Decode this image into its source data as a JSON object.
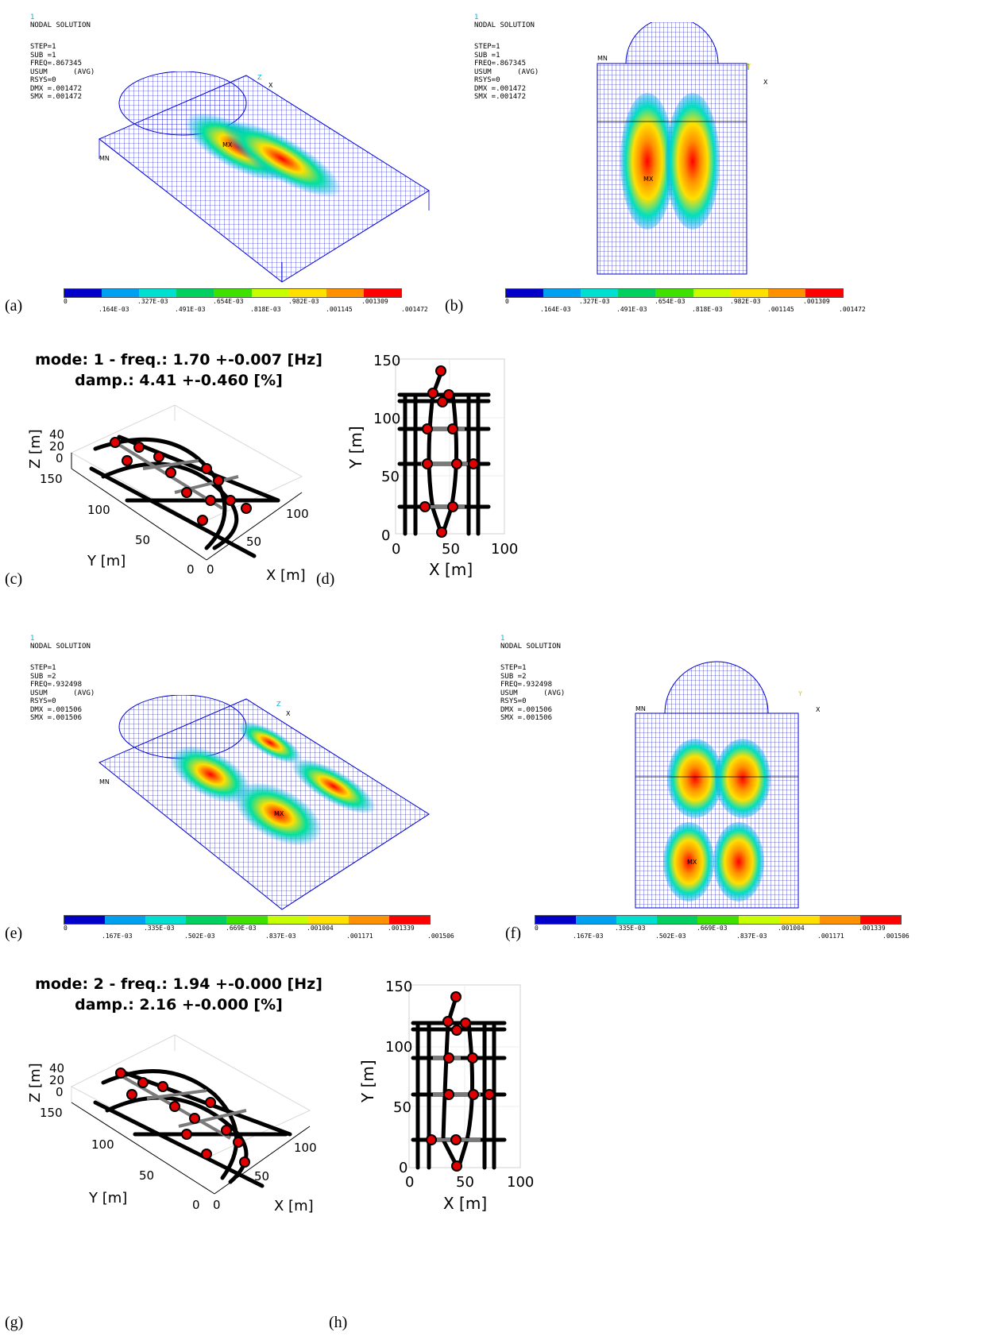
{
  "figure_labels": [
    "(a)",
    "(b)",
    "(c)",
    "(d)",
    "(e)",
    "(f)",
    "(g)",
    "(h)"
  ],
  "ansys": {
    "mode1": {
      "one": "1",
      "title": "NODAL SOLUTION",
      "step": "STEP=1",
      "sub": "SUB =1",
      "freq": "FREQ=.867345",
      "usum": "USUM      (AVG)",
      "rsys": "RSYS=0",
      "dmx": "DMX =.001472",
      "smx": "SMX =.001472",
      "colorbar_top": [
        "0",
        ".327E-03",
        ".654E-03",
        ".982E-03",
        ".001309"
      ],
      "colorbar_bottom": [
        ".164E-03",
        ".491E-03",
        ".818E-03",
        ".001145",
        ".001472"
      ]
    },
    "mode2": {
      "one": "1",
      "title": "NODAL SOLUTION",
      "step": "STEP=1",
      "sub": "SUB =2",
      "freq": "FREQ=.932498",
      "usum": "USUM      (AVG)",
      "rsys": "RSYS=0",
      "dmx": "DMX =.001506",
      "smx": "SMX =.001506",
      "colorbar_top": [
        "0",
        ".335E-03",
        ".669E-03",
        ".001004",
        ".001339"
      ],
      "colorbar_bottom": [
        ".167E-03",
        ".502E-03",
        ".837E-03",
        ".001171",
        ".001506"
      ]
    },
    "mn_label": "MN",
    "mx_label": "MX",
    "axis_x": "X",
    "axis_y": "Y",
    "axis_z": "Z",
    "colorbar_colors": [
      "#0000c8",
      "#00a0f0",
      "#00e0d0",
      "#00d060",
      "#40e000",
      "#c8ff00",
      "#ffe000",
      "#ff9000",
      "#ff0000"
    ]
  },
  "matlab": {
    "mode1": {
      "title_line1": "mode: 1 - freq.: 1.70 +-0.007 [Hz]",
      "title_line2": "damp.: 4.41 +-0.460 [%]"
    },
    "mode2": {
      "title_line1": "mode: 2 - freq.: 1.94 +-0.000 [Hz]",
      "title_line2": "damp.: 2.16 +-0.000 [%]"
    },
    "view3d": {
      "zlabel": "Z [m]",
      "ylabel": "Y [m]",
      "xlabel": "X [m]",
      "z_ticks": [
        "40",
        "20",
        "0"
      ],
      "y_ticks": [
        "150",
        "100",
        "50",
        "0"
      ],
      "x_ticks": [
        "0",
        "50",
        "100"
      ]
    },
    "plan": {
      "xlabel": "X [m]",
      "ylabel": "Y [m]",
      "x_ticks": [
        "0",
        "50",
        "100"
      ],
      "y_ticks": [
        "0",
        "50",
        "100",
        "150"
      ]
    }
  }
}
